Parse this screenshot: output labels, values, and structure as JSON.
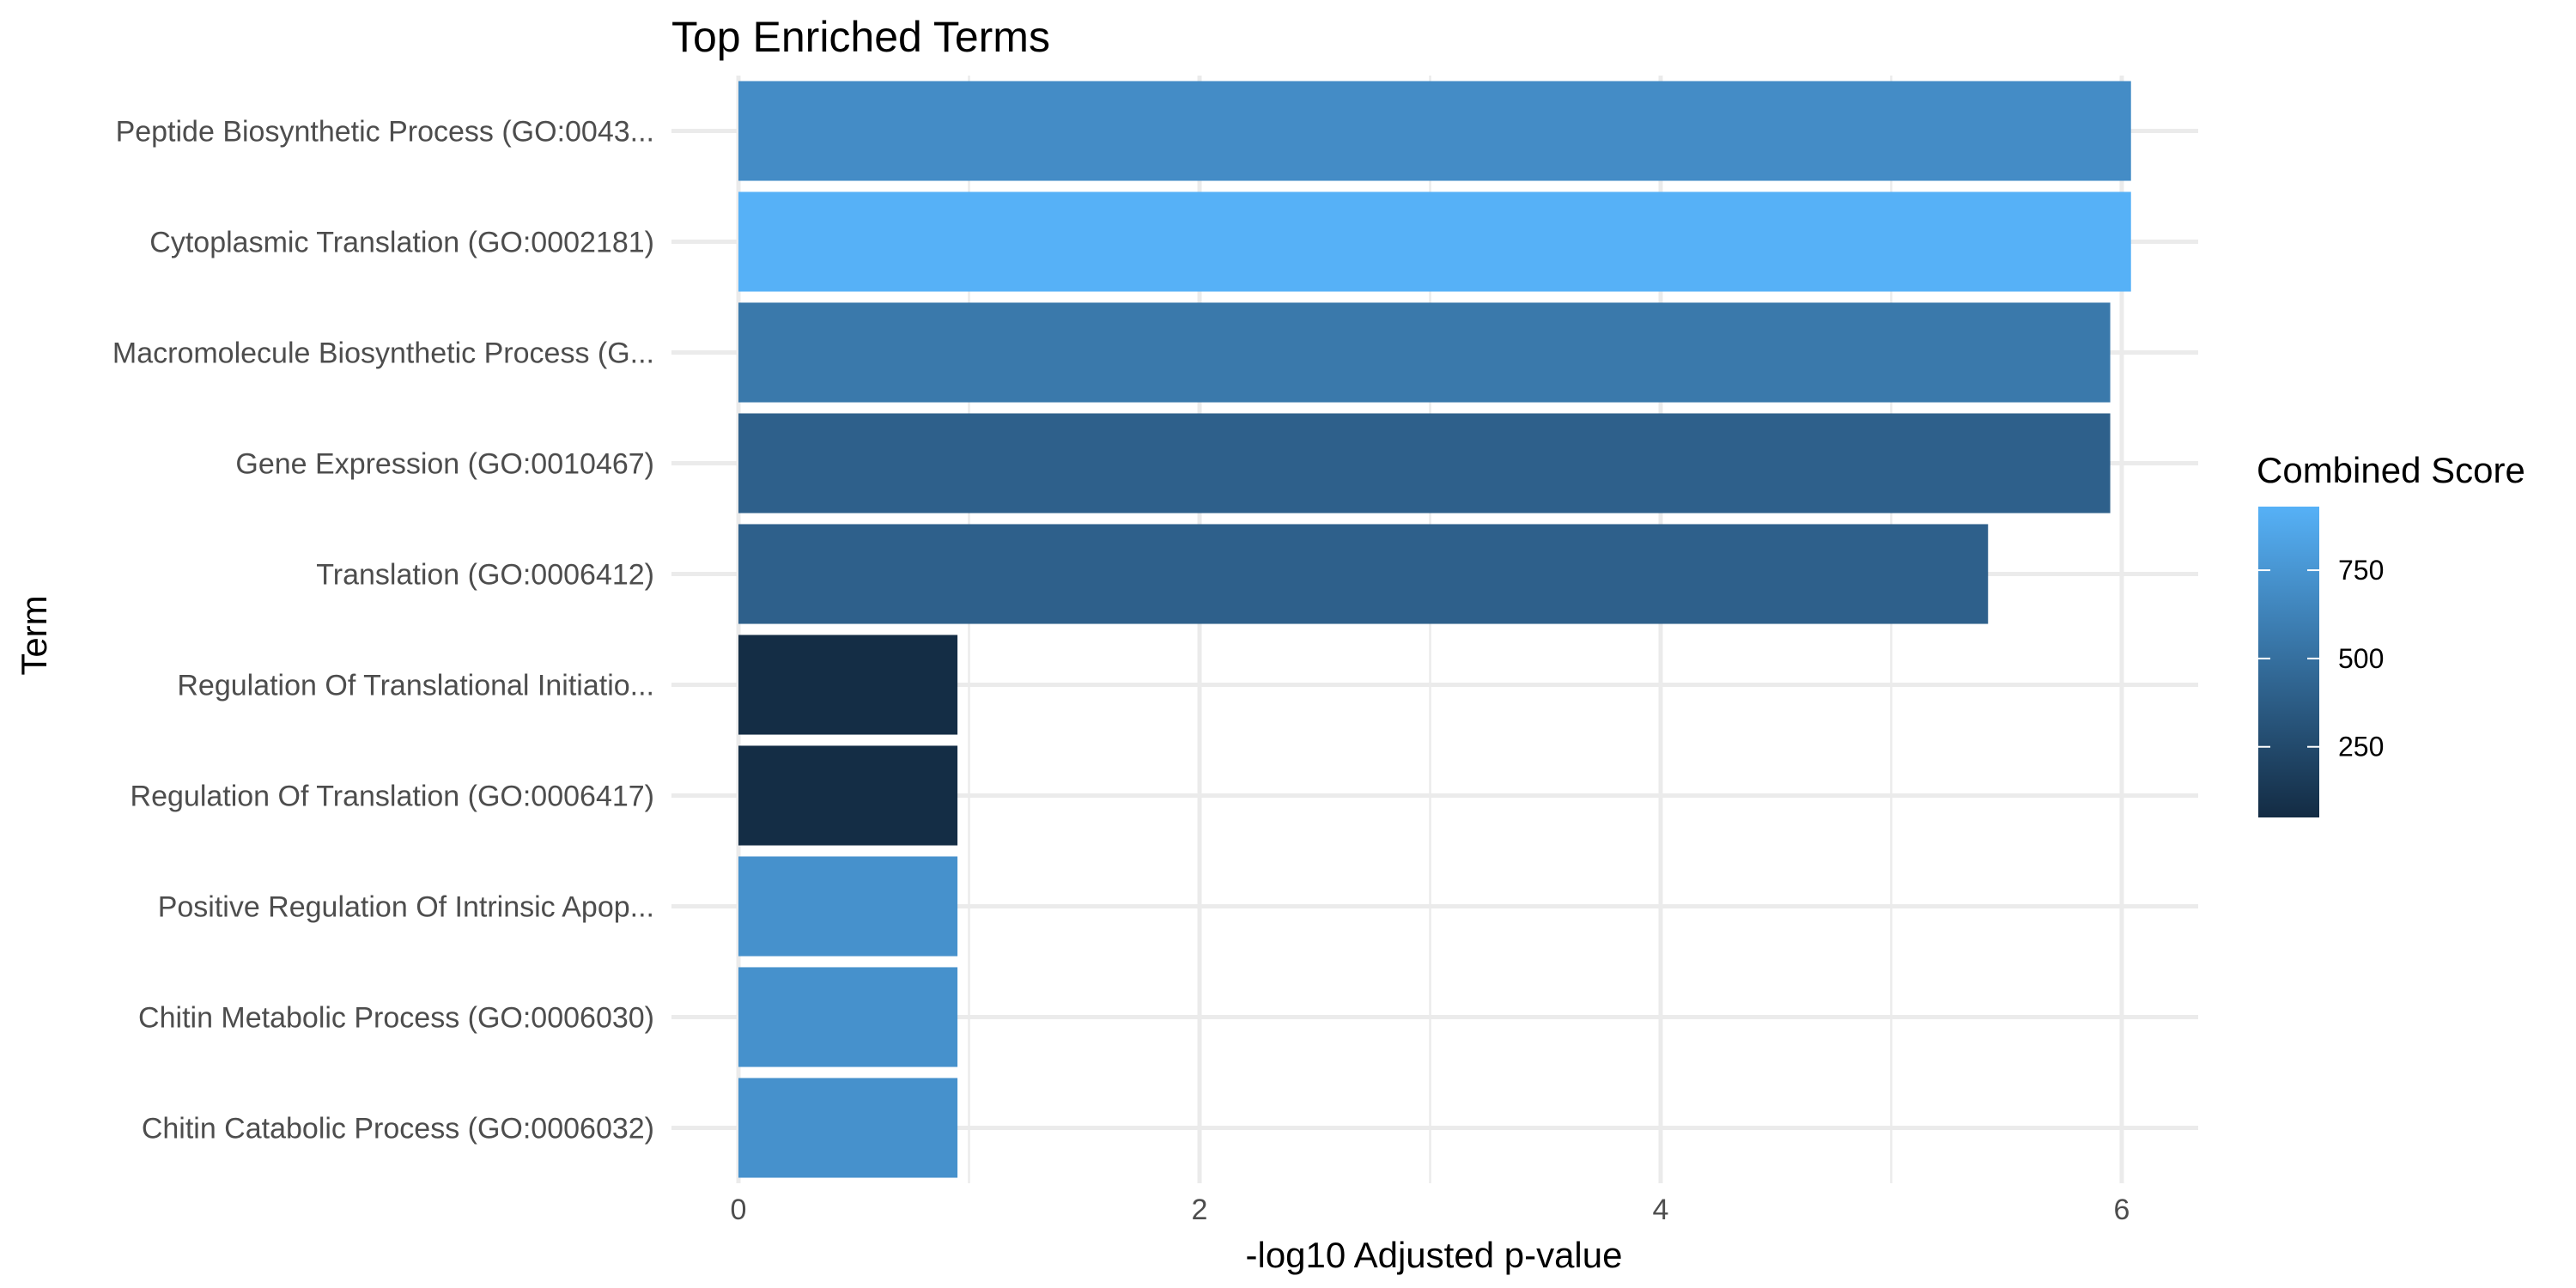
{
  "chart_data": {
    "type": "bar",
    "orientation": "horizontal",
    "title": "Top Enriched Terms",
    "xlabel": "-log10 Adjusted p-value",
    "ylabel": "Term",
    "xlim": [
      0,
      6.3
    ],
    "xticks": [
      0,
      2,
      4,
      6
    ],
    "grid": true,
    "categories": [
      "Peptide Biosynthetic Process (GO:0043...",
      "Cytoplasmic Translation (GO:0002181)",
      "Macromolecule Biosynthetic Process (G...",
      "Gene Expression (GO:0010467)",
      "Translation (GO:0006412)",
      "Regulation Of Translational Initiatio...",
      "Regulation Of Translation (GO:0006417)",
      "Positive Regulation Of Intrinsic Apop...",
      "Chitin Metabolic Process (GO:0006030)",
      "Chitin Catabolic Process (GO:0006032)"
    ],
    "values": [
      6.04,
      6.04,
      5.95,
      5.95,
      5.42,
      0.95,
      0.95,
      0.95,
      0.95,
      0.95
    ],
    "color_values": [
      690,
      930,
      560,
      400,
      400,
      60,
      60,
      720,
      720,
      720
    ],
    "color_scale": {
      "title": "Combined Score",
      "min": 50,
      "max": 930,
      "ticks": [
        250,
        500,
        750
      ],
      "low_color": "#132B43",
      "high_color": "#56B1F7"
    },
    "legend_position": "right"
  }
}
